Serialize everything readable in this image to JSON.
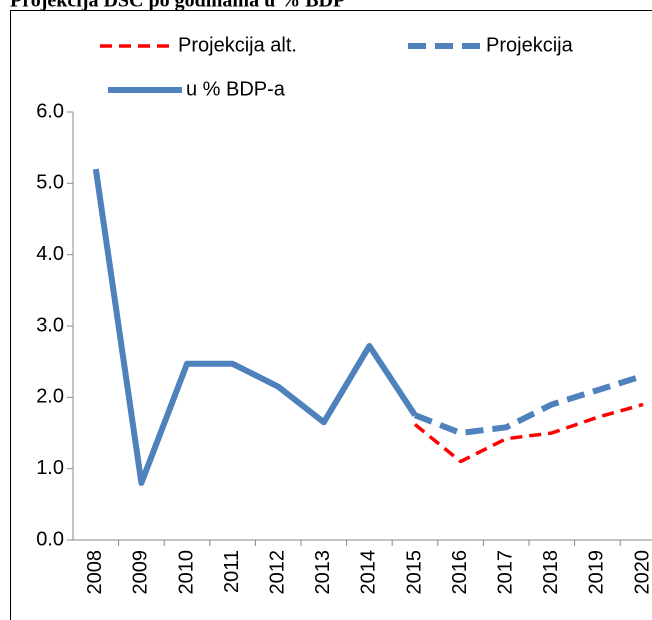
{
  "chart_data": {
    "type": "line",
    "title": "Projekcija DSC po godinama u % BDP",
    "categories": [
      "2008",
      "2009",
      "2010",
      "2011",
      "2012",
      "2013",
      "2014",
      "2015",
      "2016",
      "2017",
      "2018",
      "2019",
      "2020"
    ],
    "series": [
      {
        "name": "Projekcija alt.",
        "color": "#ff0000",
        "dash": true,
        "values": [
          null,
          null,
          null,
          null,
          null,
          null,
          null,
          1.62,
          1.1,
          1.42,
          1.5,
          1.72,
          1.9
        ]
      },
      {
        "name": "Projekcija",
        "color": "#4f81bd",
        "dash": true,
        "values": [
          null,
          null,
          null,
          null,
          null,
          null,
          null,
          1.75,
          1.5,
          1.58,
          1.9,
          2.1,
          2.3
        ]
      },
      {
        "name": "u % BDP-a",
        "color": "#4f81bd",
        "dash": false,
        "values": [
          5.2,
          0.8,
          2.47,
          2.47,
          2.15,
          1.65,
          2.72,
          1.75,
          null,
          null,
          null,
          null,
          null
        ]
      }
    ],
    "ylim": [
      0,
      6
    ],
    "yticks": [
      {
        "value": 0,
        "label": "0.0"
      },
      {
        "value": 1,
        "label": "1.0"
      },
      {
        "value": 2,
        "label": "2.0"
      },
      {
        "value": 3,
        "label": "3.0"
      },
      {
        "value": 4,
        "label": "4.0"
      },
      {
        "value": 5,
        "label": "5.0"
      },
      {
        "value": 6,
        "label": "6.0"
      }
    ],
    "legend": "top"
  }
}
